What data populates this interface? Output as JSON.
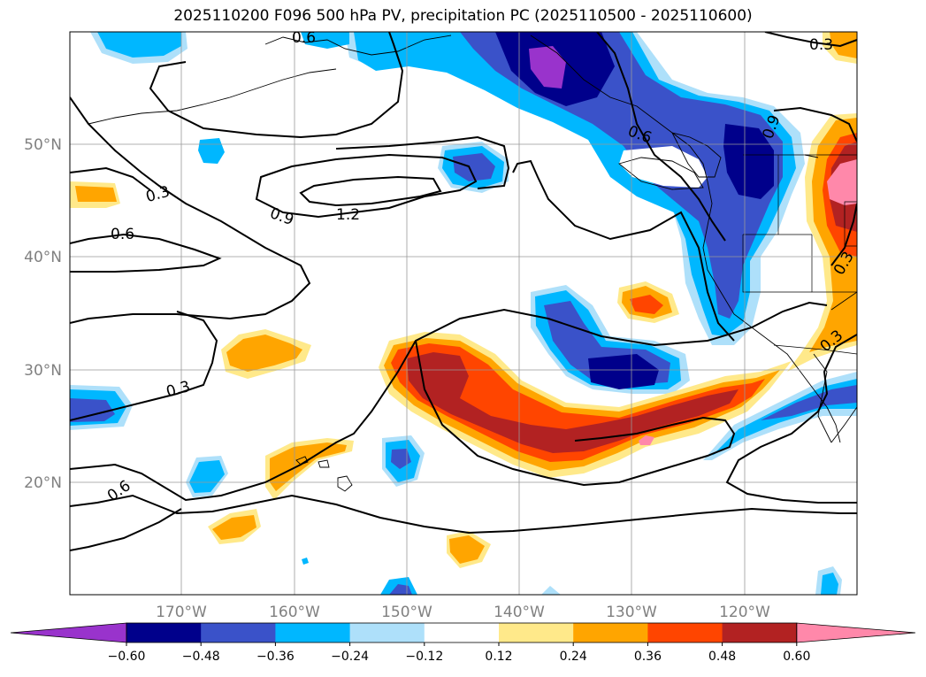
{
  "title": "2025110200 F096 500 hPa PV, precipitation PC (2025110500 - 2025110600)",
  "lat_labels": [
    "50°N",
    "40°N",
    "30°N",
    "20°N"
  ],
  "lon_labels": [
    "170°W",
    "160°W",
    "150°W",
    "140°W",
    "130°W",
    "120°W"
  ],
  "contour_labels": [
    "0.6",
    "0.3",
    "0.3",
    "0.6",
    "0.9",
    "1.2",
    "0.6",
    "0.9",
    "0.3",
    "0.3",
    "0.3",
    "0.6"
  ],
  "colorbar": {
    "ticks": [
      "−0.60",
      "−0.48",
      "−0.36",
      "−0.24",
      "−0.12",
      "0.12",
      "0.24",
      "0.36",
      "0.48",
      "0.60"
    ],
    "colors": [
      "#9933cc",
      "#00008b",
      "#3a52c9",
      "#00b7ff",
      "#aee0fa",
      "#ffffff",
      "#ffe98a",
      "#ffa500",
      "#ff4500",
      "#b22222",
      "#ff88aa"
    ]
  }
}
